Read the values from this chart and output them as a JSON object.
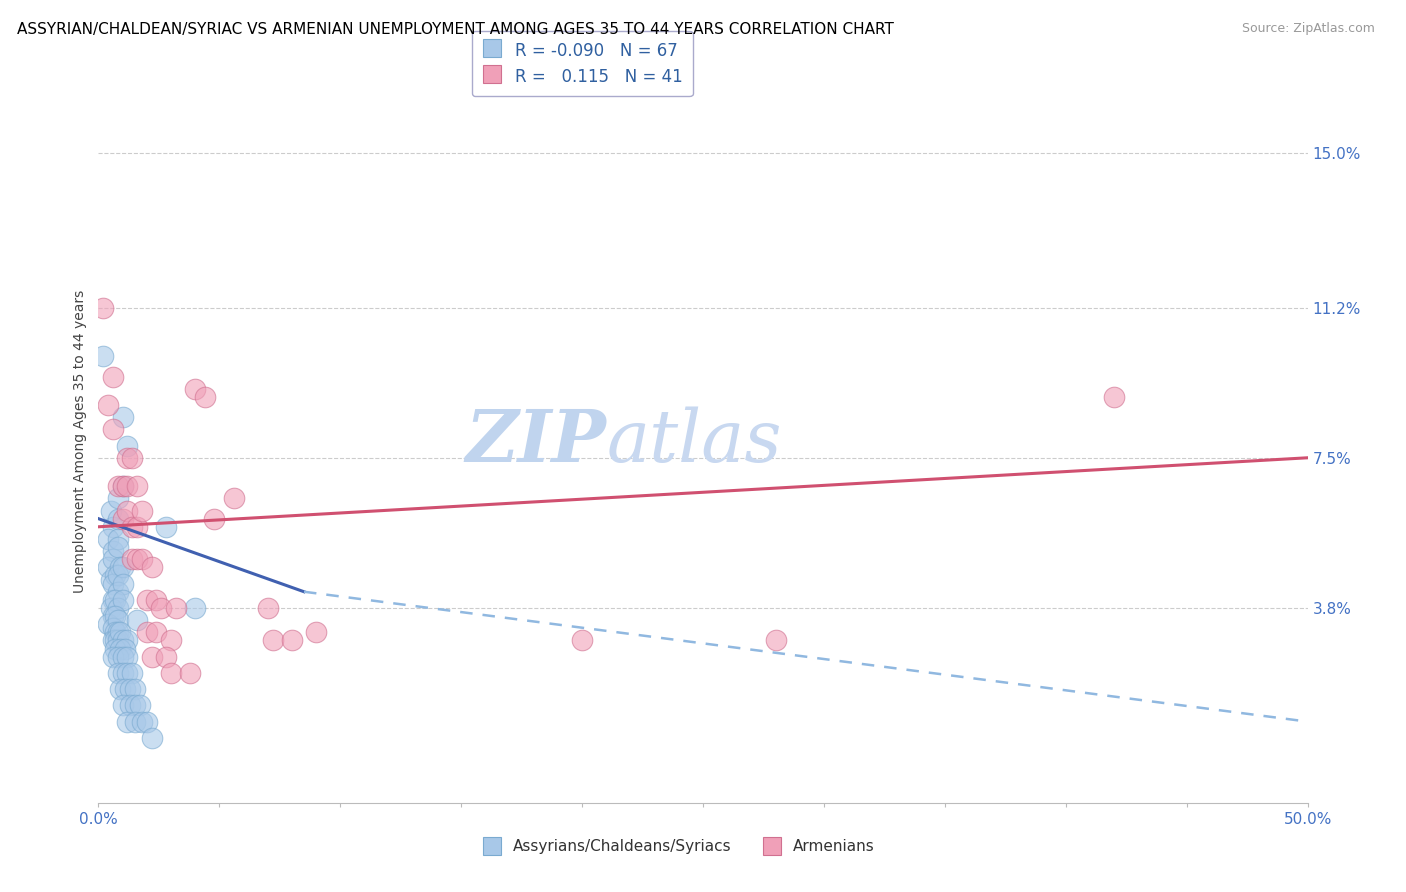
{
  "title": "ASSYRIAN/CHALDEAN/SYRIAC VS ARMENIAN UNEMPLOYMENT AMONG AGES 35 TO 44 YEARS CORRELATION CHART",
  "source": "Source: ZipAtlas.com",
  "ylabel": "Unemployment Among Ages 35 to 44 years",
  "ytick_labels": [
    "15.0%",
    "11.2%",
    "7.5%",
    "3.8%"
  ],
  "ytick_values": [
    0.15,
    0.112,
    0.075,
    0.038
  ],
  "xlim": [
    0.0,
    0.5
  ],
  "ylim": [
    -0.01,
    0.168
  ],
  "legend_blue_r": "-0.090",
  "legend_blue_n": "67",
  "legend_pink_r": "0.115",
  "legend_pink_n": "41",
  "blue_color": "#A8C8E8",
  "pink_color": "#F0A0B8",
  "blue_edge_color": "#7AAAD0",
  "pink_edge_color": "#D07090",
  "blue_line_color": "#4060B0",
  "pink_line_color": "#D05070",
  "blue_dashed_color": "#90B8E0",
  "watermark_color": "#C8D8F0",
  "blue_scatter": [
    [
      0.002,
      0.1
    ],
    [
      0.01,
      0.085
    ],
    [
      0.012,
      0.078
    ],
    [
      0.005,
      0.062
    ],
    [
      0.008,
      0.065
    ],
    [
      0.01,
      0.068
    ],
    [
      0.006,
      0.058
    ],
    [
      0.008,
      0.06
    ],
    [
      0.004,
      0.055
    ],
    [
      0.006,
      0.052
    ],
    [
      0.008,
      0.055
    ],
    [
      0.004,
      0.048
    ],
    [
      0.006,
      0.05
    ],
    [
      0.008,
      0.053
    ],
    [
      0.005,
      0.045
    ],
    [
      0.007,
      0.046
    ],
    [
      0.009,
      0.048
    ],
    [
      0.006,
      0.044
    ],
    [
      0.008,
      0.046
    ],
    [
      0.01,
      0.048
    ],
    [
      0.006,
      0.04
    ],
    [
      0.008,
      0.042
    ],
    [
      0.01,
      0.044
    ],
    [
      0.005,
      0.038
    ],
    [
      0.007,
      0.04
    ],
    [
      0.006,
      0.036
    ],
    [
      0.008,
      0.038
    ],
    [
      0.01,
      0.04
    ],
    [
      0.004,
      0.034
    ],
    [
      0.007,
      0.036
    ],
    [
      0.006,
      0.033
    ],
    [
      0.008,
      0.035
    ],
    [
      0.007,
      0.032
    ],
    [
      0.006,
      0.03
    ],
    [
      0.008,
      0.032
    ],
    [
      0.007,
      0.03
    ],
    [
      0.008,
      0.03
    ],
    [
      0.009,
      0.032
    ],
    [
      0.01,
      0.03
    ],
    [
      0.012,
      0.03
    ],
    [
      0.007,
      0.028
    ],
    [
      0.009,
      0.028
    ],
    [
      0.011,
      0.028
    ],
    [
      0.006,
      0.026
    ],
    [
      0.008,
      0.026
    ],
    [
      0.01,
      0.026
    ],
    [
      0.012,
      0.026
    ],
    [
      0.008,
      0.022
    ],
    [
      0.01,
      0.022
    ],
    [
      0.012,
      0.022
    ],
    [
      0.014,
      0.022
    ],
    [
      0.009,
      0.018
    ],
    [
      0.011,
      0.018
    ],
    [
      0.013,
      0.018
    ],
    [
      0.015,
      0.018
    ],
    [
      0.01,
      0.014
    ],
    [
      0.013,
      0.014
    ],
    [
      0.015,
      0.014
    ],
    [
      0.017,
      0.014
    ],
    [
      0.012,
      0.01
    ],
    [
      0.015,
      0.01
    ],
    [
      0.018,
      0.01
    ],
    [
      0.02,
      0.01
    ],
    [
      0.028,
      0.058
    ],
    [
      0.022,
      0.006
    ],
    [
      0.016,
      0.035
    ],
    [
      0.04,
      0.038
    ]
  ],
  "pink_scatter": [
    [
      0.002,
      0.112
    ],
    [
      0.006,
      0.095
    ],
    [
      0.004,
      0.088
    ],
    [
      0.006,
      0.082
    ],
    [
      0.012,
      0.075
    ],
    [
      0.014,
      0.075
    ],
    [
      0.008,
      0.068
    ],
    [
      0.01,
      0.068
    ],
    [
      0.012,
      0.068
    ],
    [
      0.016,
      0.068
    ],
    [
      0.01,
      0.06
    ],
    [
      0.012,
      0.062
    ],
    [
      0.014,
      0.058
    ],
    [
      0.016,
      0.058
    ],
    [
      0.018,
      0.062
    ],
    [
      0.014,
      0.05
    ],
    [
      0.016,
      0.05
    ],
    [
      0.018,
      0.05
    ],
    [
      0.022,
      0.048
    ],
    [
      0.02,
      0.04
    ],
    [
      0.024,
      0.04
    ],
    [
      0.026,
      0.038
    ],
    [
      0.02,
      0.032
    ],
    [
      0.024,
      0.032
    ],
    [
      0.03,
      0.03
    ],
    [
      0.022,
      0.026
    ],
    [
      0.028,
      0.026
    ],
    [
      0.03,
      0.022
    ],
    [
      0.038,
      0.022
    ],
    [
      0.032,
      0.038
    ],
    [
      0.04,
      0.092
    ],
    [
      0.044,
      0.09
    ],
    [
      0.048,
      0.06
    ],
    [
      0.056,
      0.065
    ],
    [
      0.07,
      0.038
    ],
    [
      0.072,
      0.03
    ],
    [
      0.08,
      0.03
    ],
    [
      0.09,
      0.032
    ],
    [
      0.2,
      0.03
    ],
    [
      0.28,
      0.03
    ],
    [
      0.42,
      0.09
    ]
  ],
  "blue_trendline_solid": [
    [
      0.0,
      0.06
    ],
    [
      0.085,
      0.042
    ]
  ],
  "blue_trendline_dashed": [
    [
      0.085,
      0.042
    ],
    [
      0.5,
      0.01
    ]
  ],
  "pink_trendline": [
    [
      0.0,
      0.058
    ],
    [
      0.5,
      0.075
    ]
  ]
}
